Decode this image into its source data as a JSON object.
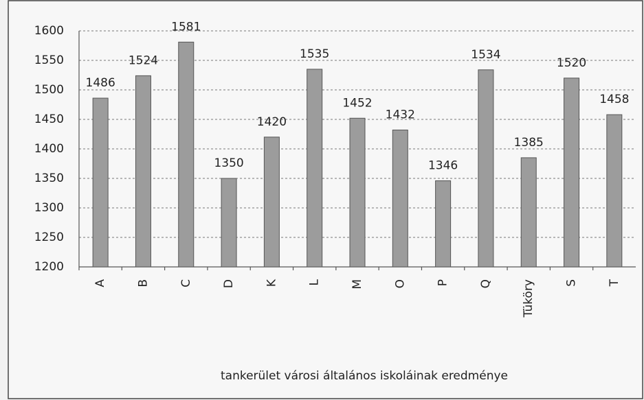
{
  "chart_data": {
    "type": "bar",
    "x_label": "tankerület városi általános iskoláinak eredménye",
    "categories": [
      "A",
      "B",
      "C",
      "D",
      "K",
      "L",
      "M",
      "O",
      "P",
      "Q",
      "Tüköry",
      "S",
      "T"
    ],
    "values": [
      1486,
      1524,
      1581,
      1350,
      1420,
      1535,
      1452,
      1432,
      1346,
      1534,
      1385,
      1520,
      1458
    ],
    "color": "#9c9c9c",
    "ylim": [
      1200,
      1600
    ],
    "yticks": [
      1200,
      1250,
      1300,
      1350,
      1400,
      1450,
      1500,
      1550,
      1600
    ],
    "grid": true
  }
}
